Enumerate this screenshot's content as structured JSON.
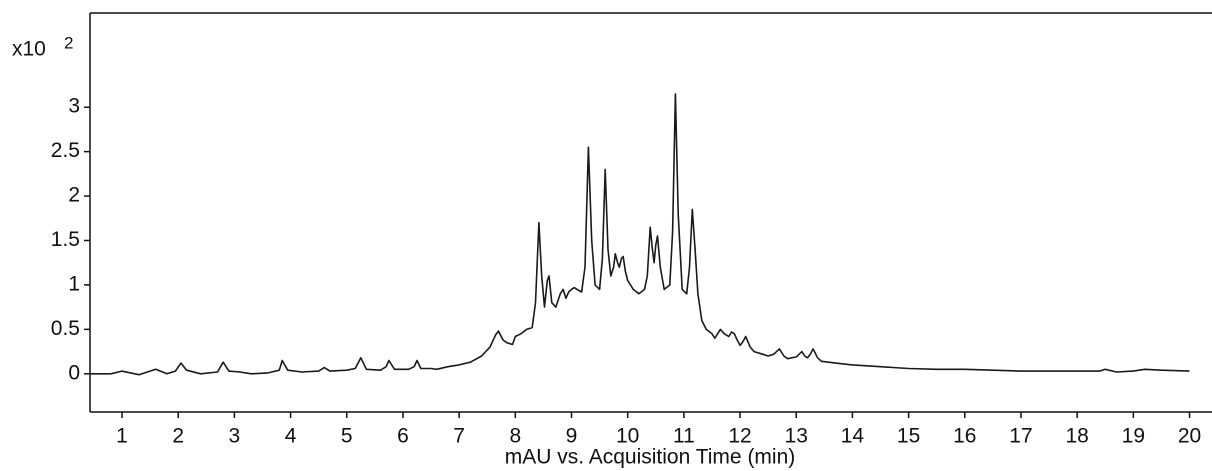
{
  "chart_data": {
    "type": "line",
    "x_label": "mAU vs. Acquisition Time (min)",
    "y_multiplier": "x10",
    "y_multiplier_exponent": "2",
    "x": [
      0.43,
      0.8,
      1.0,
      1.3,
      1.6,
      1.8,
      1.95,
      2.05,
      2.15,
      2.4,
      2.7,
      2.8,
      2.9,
      3.1,
      3.3,
      3.6,
      3.8,
      3.85,
      3.95,
      4.2,
      4.5,
      4.6,
      4.7,
      5.0,
      5.15,
      5.25,
      5.35,
      5.6,
      5.7,
      5.75,
      5.85,
      6.1,
      6.2,
      6.25,
      6.32,
      6.5,
      6.6,
      6.8,
      7.0,
      7.2,
      7.4,
      7.55,
      7.65,
      7.7,
      7.78,
      7.85,
      7.95,
      8.0,
      8.1,
      8.2,
      8.3,
      8.36,
      8.42,
      8.47,
      8.52,
      8.57,
      8.6,
      8.65,
      8.72,
      8.8,
      8.85,
      8.9,
      8.95,
      9.0,
      9.05,
      9.1,
      9.18,
      9.24,
      9.3,
      9.36,
      9.42,
      9.5,
      9.55,
      9.6,
      9.65,
      9.7,
      9.75,
      9.78,
      9.82,
      9.85,
      9.89,
      9.92,
      9.96,
      10.0,
      10.1,
      10.2,
      10.3,
      10.35,
      10.4,
      10.44,
      10.47,
      10.5,
      10.53,
      10.58,
      10.65,
      10.75,
      10.8,
      10.85,
      10.9,
      10.97,
      11.05,
      11.1,
      11.15,
      11.2,
      11.25,
      11.32,
      11.4,
      11.5,
      11.55,
      11.6,
      11.65,
      11.72,
      11.8,
      11.85,
      11.9,
      11.95,
      12.0,
      12.05,
      12.1,
      12.18,
      12.25,
      12.4,
      12.5,
      12.6,
      12.7,
      12.78,
      12.85,
      13.0,
      13.1,
      13.15,
      13.2,
      13.25,
      13.3,
      13.38,
      13.45,
      13.7,
      14.0,
      14.5,
      15.0,
      15.5,
      16.0,
      16.5,
      17.0,
      17.5,
      18.0,
      18.4,
      18.5,
      18.7,
      19.0,
      19.2,
      19.5,
      20.0
    ],
    "series": [
      {
        "color": "#1a1a1a",
        "values": [
          0.0,
          0.0,
          0.03,
          -0.01,
          0.05,
          0.0,
          0.03,
          0.12,
          0.04,
          0.0,
          0.02,
          0.13,
          0.03,
          0.02,
          0.0,
          0.01,
          0.04,
          0.15,
          0.04,
          0.02,
          0.03,
          0.07,
          0.03,
          0.04,
          0.06,
          0.18,
          0.05,
          0.04,
          0.08,
          0.15,
          0.05,
          0.05,
          0.08,
          0.15,
          0.06,
          0.06,
          0.05,
          0.08,
          0.1,
          0.13,
          0.2,
          0.3,
          0.44,
          0.48,
          0.38,
          0.35,
          0.33,
          0.42,
          0.45,
          0.5,
          0.52,
          0.8,
          1.7,
          1.1,
          0.75,
          1.05,
          1.1,
          0.8,
          0.75,
          0.9,
          0.95,
          0.85,
          0.92,
          0.95,
          0.97,
          0.95,
          0.92,
          1.2,
          2.55,
          1.5,
          1.0,
          0.95,
          1.3,
          2.3,
          1.4,
          1.1,
          1.2,
          1.35,
          1.25,
          1.2,
          1.3,
          1.32,
          1.15,
          1.05,
          0.95,
          0.9,
          0.95,
          1.1,
          1.65,
          1.4,
          1.25,
          1.45,
          1.55,
          1.2,
          0.95,
          1.0,
          1.6,
          3.15,
          1.8,
          0.95,
          0.9,
          1.2,
          1.85,
          1.4,
          0.9,
          0.6,
          0.5,
          0.45,
          0.4,
          0.45,
          0.5,
          0.45,
          0.42,
          0.47,
          0.45,
          0.38,
          0.32,
          0.36,
          0.42,
          0.3,
          0.25,
          0.22,
          0.2,
          0.22,
          0.28,
          0.2,
          0.17,
          0.19,
          0.25,
          0.2,
          0.18,
          0.22,
          0.28,
          0.18,
          0.14,
          0.12,
          0.1,
          0.08,
          0.06,
          0.05,
          0.05,
          0.04,
          0.03,
          0.03,
          0.03,
          0.03,
          0.05,
          0.02,
          0.03,
          0.05,
          0.04,
          0.03
        ]
      }
    ],
    "xlim": [
      0.43,
      20.4
    ],
    "ylim": [
      -0.43,
      4.06
    ],
    "xticks": [
      1,
      2,
      3,
      4,
      5,
      6,
      7,
      8,
      9,
      10,
      11,
      12,
      13,
      14,
      15,
      16,
      17,
      18,
      19,
      20
    ],
    "yticks": [
      0,
      0.5,
      1,
      1.5,
      2,
      2.5,
      3
    ],
    "grid": false
  }
}
